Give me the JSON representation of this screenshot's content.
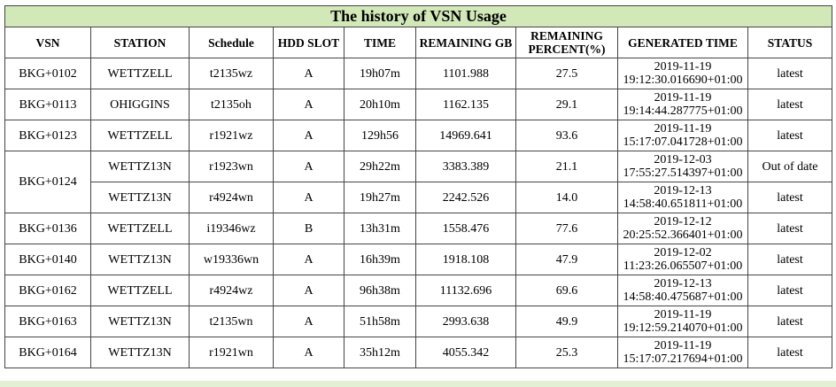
{
  "title": "The history of VSN Usage",
  "columns": [
    "VSN",
    "STATION",
    "Schedule",
    "HDD SLOT",
    "TIME",
    "REMAINING GB",
    "REMAINING PERCENT(%)",
    "GENERATED TIME",
    "STATUS"
  ],
  "rows": [
    {
      "vsn": "BKG+0102",
      "station": "WETTZELL",
      "schedule": "t2135wz",
      "slot": "A",
      "time": "19h07m",
      "gb": "1101.988",
      "percent": "27.5",
      "gen_date": "2019-11-19",
      "gen_time": "19:12:30.016690+01:00",
      "status": "latest"
    },
    {
      "vsn": "BKG+0113",
      "station": "OHIGGINS",
      "schedule": "t2135oh",
      "slot": "A",
      "time": "20h10m",
      "gb": "1162.135",
      "percent": "29.1",
      "gen_date": "2019-11-19",
      "gen_time": "19:14:44.287775+01:00",
      "status": "latest"
    },
    {
      "vsn": "BKG+0123",
      "station": "WETTZELL",
      "schedule": "r1921wz",
      "slot": "A",
      "time": "129h56",
      "gb": "14969.641",
      "percent": "93.6",
      "gen_date": "2019-11-19",
      "gen_time": "15:17:07.041728+01:00",
      "status": "latest"
    },
    {
      "vsn": "BKG+0124",
      "station": "WETTZ13N",
      "schedule": "r1923wn",
      "slot": "A",
      "time": "29h22m",
      "gb": "3383.389",
      "percent": "21.1",
      "gen_date": "2019-12-03",
      "gen_time": "17:55:27.514397+01:00",
      "status": "Out of date"
    },
    {
      "vsn": "",
      "station": "WETTZ13N",
      "schedule": "r4924wn",
      "slot": "A",
      "time": "19h27m",
      "gb": "2242.526",
      "percent": "14.0",
      "gen_date": "2019-12-13",
      "gen_time": "14:58:40.651811+01:00",
      "status": "latest"
    },
    {
      "vsn": "BKG+0136",
      "station": "WETTZELL",
      "schedule": "i19346wz",
      "slot": "B",
      "time": "13h31m",
      "gb": "1558.476",
      "percent": "77.6",
      "gen_date": "2019-12-12",
      "gen_time": "20:25:52.366401+01:00",
      "status": "latest"
    },
    {
      "vsn": "BKG+0140",
      "station": "WETTZ13N",
      "schedule": "w19336wn",
      "slot": "A",
      "time": "16h39m",
      "gb": "1918.108",
      "percent": "47.9",
      "gen_date": "2019-12-02",
      "gen_time": "11:23:26.065507+01:00",
      "status": "latest"
    },
    {
      "vsn": "BKG+0162",
      "station": "WETTZELL",
      "schedule": "r4924wz",
      "slot": "A",
      "time": "96h38m",
      "gb": "11132.696",
      "percent": "69.6",
      "gen_date": "2019-12-13",
      "gen_time": "14:58:40.475687+01:00",
      "status": "latest"
    },
    {
      "vsn": "BKG+0163",
      "station": "WETTZ13N",
      "schedule": "t2135wn",
      "slot": "A",
      "time": "51h58m",
      "gb": "2993.638",
      "percent": "49.9",
      "gen_date": "2019-11-19",
      "gen_time": "19:12:59.214070+01:00",
      "status": "latest"
    },
    {
      "vsn": "BKG+0164",
      "station": "WETTZ13N",
      "schedule": "r1921wn",
      "slot": "A",
      "time": "35h12m",
      "gb": "4055.342",
      "percent": "25.3",
      "gen_date": "2019-11-19",
      "gen_time": "15:17:07.217694+01:00",
      "status": "latest"
    }
  ],
  "colors": {
    "title_background": "#d2e8b8",
    "border": "#444444"
  }
}
